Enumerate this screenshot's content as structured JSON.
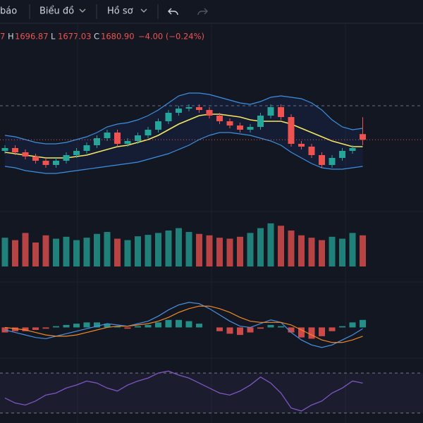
{
  "toolbar": {
    "alerts": "báo",
    "chart": "Biểu đồ",
    "profile": "Hồ sơ"
  },
  "legend": {
    "prefix": "7",
    "high_label": "H",
    "high": "1696.87",
    "low_label": "L",
    "low": "1677.03",
    "close_label": "C",
    "close": "1680.90",
    "change": "−4.00 (−0.24%)"
  },
  "chart_data": {
    "type": "candlestick",
    "up_color": "#26a69a",
    "down_color": "#ef5350",
    "ylim": [
      1650,
      1720
    ],
    "open": [
      1673,
      1675,
      1672,
      1669,
      1666,
      1663,
      1666,
      1670,
      1673,
      1677,
      1682,
      1686,
      1678,
      1680,
      1684,
      1688,
      1694,
      1700,
      1703,
      1704,
      1702,
      1698,
      1694,
      1691,
      1688,
      1690,
      1698,
      1704,
      1697,
      1678,
      1676,
      1670,
      1663,
      1668,
      1673,
      1684.9
    ],
    "high": [
      1677,
      1677,
      1674,
      1671,
      1668,
      1668,
      1672,
      1675,
      1679,
      1684,
      1688,
      1688,
      1682,
      1686,
      1690,
      1696,
      1702,
      1705,
      1706,
      1706,
      1704,
      1700,
      1696,
      1693,
      1692,
      1700,
      1706,
      1706,
      1699,
      1680,
      1678,
      1672,
      1670,
      1675,
      1677,
      1696.87
    ],
    "low": [
      1671,
      1670,
      1667,
      1664,
      1661,
      1661,
      1664,
      1668,
      1671,
      1675,
      1680,
      1676,
      1676,
      1678,
      1682,
      1686,
      1692,
      1698,
      1701,
      1700,
      1696,
      1692,
      1689,
      1686,
      1686,
      1688,
      1696,
      1695,
      1676,
      1674,
      1668,
      1661,
      1661,
      1666,
      1671,
      1677.03
    ],
    "close": [
      1675,
      1672,
      1669,
      1666,
      1663,
      1666,
      1670,
      1673,
      1677,
      1682,
      1686,
      1678,
      1680,
      1684,
      1688,
      1694,
      1700,
      1703,
      1704,
      1702,
      1698,
      1694,
      1691,
      1688,
      1690,
      1698,
      1704,
      1697,
      1678,
      1676,
      1670,
      1663,
      1668,
      1673,
      1675,
      1680.9
    ],
    "overlays": [
      {
        "color": "#f5e663",
        "values": [
          1672,
          1671,
          1670,
          1669,
          1668,
          1668,
          1668,
          1669,
          1670,
          1672,
          1674,
          1676,
          1677,
          1679,
          1681,
          1684,
          1688,
          1692,
          1695,
          1698,
          1699,
          1699,
          1698,
          1697,
          1695,
          1694,
          1694,
          1694,
          1692,
          1689,
          1686,
          1683,
          1680,
          1678,
          1676,
          1676
        ]
      },
      {
        "color": "#3d8fe0",
        "values": [
          1684,
          1683,
          1681,
          1679,
          1678,
          1678,
          1679,
          1681,
          1683,
          1686,
          1690,
          1692,
          1693,
          1695,
          1698,
          1702,
          1707,
          1712,
          1714,
          1714,
          1713,
          1711,
          1709,
          1707,
          1706,
          1708,
          1711,
          1712,
          1711,
          1710,
          1707,
          1702,
          1695,
          1690,
          1688,
          1689
        ]
      },
      {
        "color": "#3d8fe0",
        "values": [
          1662,
          1661,
          1659,
          1658,
          1657,
          1657,
          1658,
          1659,
          1660,
          1661,
          1662,
          1663,
          1664,
          1665,
          1667,
          1669,
          1671,
          1674,
          1677,
          1681,
          1684,
          1686,
          1686,
          1685,
          1684,
          1682,
          1680,
          1677,
          1672,
          1668,
          1664,
          1661,
          1660,
          1660,
          1661,
          1662
        ]
      }
    ],
    "volume": {
      "ylim": [
        0,
        100
      ],
      "values": [
        60,
        55,
        70,
        50,
        65,
        58,
        62,
        55,
        60,
        68,
        72,
        58,
        55,
        63,
        66,
        70,
        75,
        80,
        72,
        68,
        65,
        60,
        58,
        62,
        70,
        80,
        90,
        85,
        75,
        65,
        60,
        55,
        62,
        58,
        70,
        65
      ]
    },
    "macd": {
      "ylim": [
        -20,
        25
      ],
      "histogram": [
        -4,
        -3,
        -3,
        -2,
        -1,
        1,
        2,
        3,
        4,
        4,
        3,
        1,
        -1,
        1,
        2,
        4,
        6,
        6,
        5,
        3,
        0,
        -3,
        -5,
        -6,
        -4,
        -1,
        2,
        1,
        -4,
        -8,
        -9,
        -7,
        -3,
        1,
        4,
        6
      ],
      "macd_color": "#4a90e2",
      "macd": [
        -2,
        -4,
        -6,
        -8,
        -9,
        -7,
        -5,
        -3,
        -1,
        1,
        3,
        2,
        1,
        3,
        5,
        9,
        14,
        18,
        20,
        19,
        15,
        10,
        5,
        1,
        0,
        3,
        6,
        4,
        -4,
        -10,
        -14,
        -16,
        -14,
        -10,
        -6,
        -1
      ],
      "signal_color": "#f08a24",
      "signal": [
        0,
        -1,
        -2,
        -4,
        -6,
        -7,
        -7,
        -6,
        -4,
        -2,
        0,
        1,
        1,
        2,
        3,
        5,
        8,
        12,
        15,
        17,
        17,
        15,
        12,
        8,
        5,
        4,
        4,
        4,
        2,
        -2,
        -6,
        -10,
        -12,
        -12,
        -10,
        -7
      ]
    },
    "rsi": {
      "ylim": [
        20,
        80
      ],
      "levels": [
        70,
        30
      ],
      "color": "#7e57c2",
      "values": [
        45,
        40,
        38,
        42,
        48,
        50,
        55,
        58,
        62,
        60,
        55,
        52,
        58,
        62,
        65,
        70,
        72,
        68,
        65,
        60,
        55,
        50,
        48,
        52,
        58,
        66,
        60,
        50,
        35,
        32,
        38,
        42,
        50,
        55,
        62,
        60
      ]
    }
  }
}
